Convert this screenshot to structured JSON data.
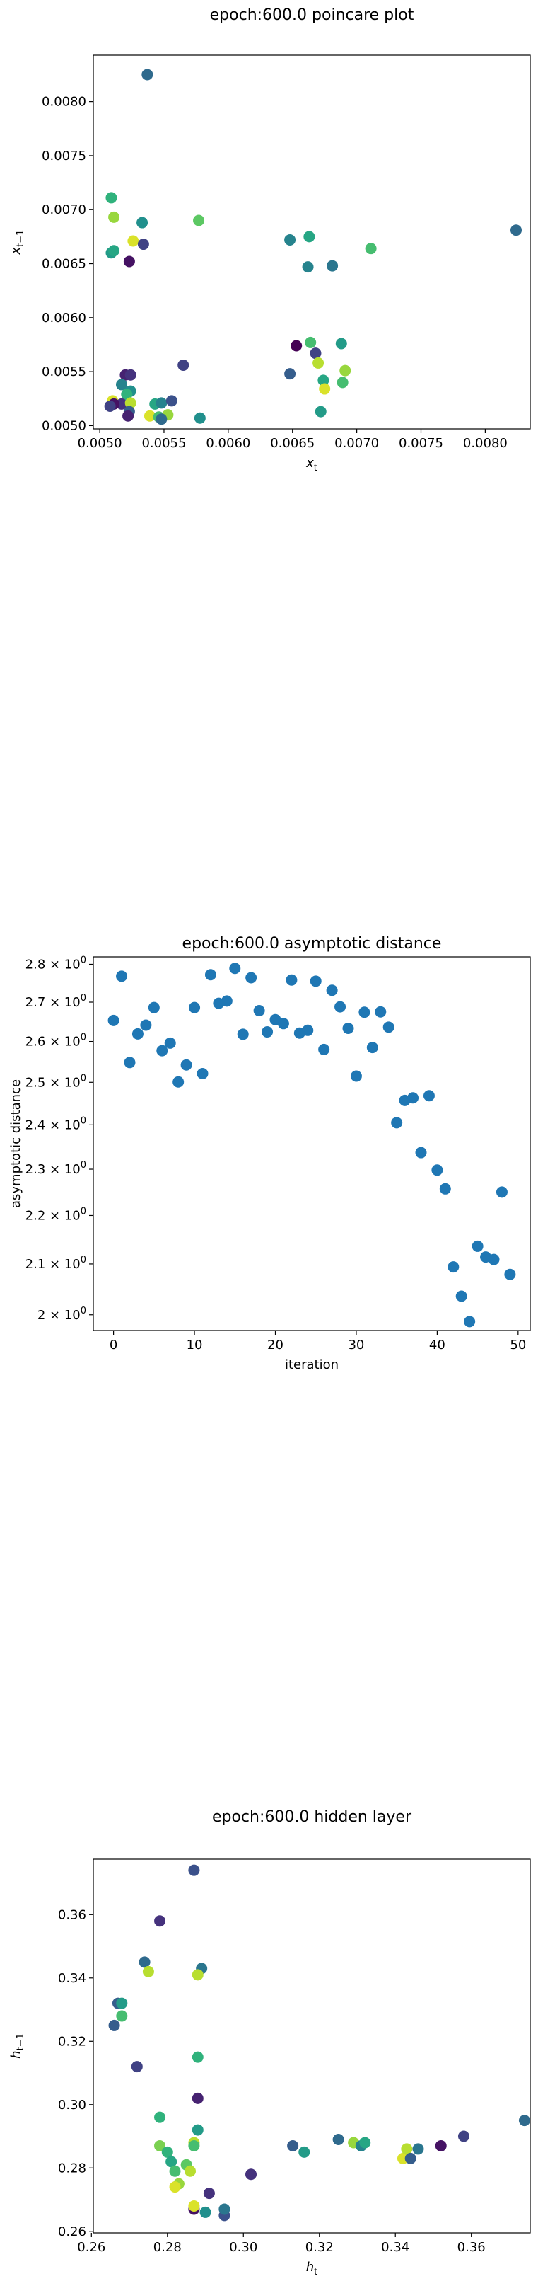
{
  "chart_data": [
    {
      "type": "scatter",
      "title": "epoch:600.0 poincare plot",
      "xlabel": "x_t",
      "ylabel": "x_{t-1}",
      "xlim": [
        0.00495,
        0.00835
      ],
      "ylim": [
        0.00497,
        0.00843
      ],
      "xticks": [
        "0.0050",
        "0.0055",
        "0.0060",
        "0.0065",
        "0.0070",
        "0.0075",
        "0.0080"
      ],
      "xtick_values": [
        0.005,
        0.0055,
        0.006,
        0.0065,
        0.007,
        0.0075,
        0.008
      ],
      "yticks": [
        "0.0050",
        "0.0055",
        "0.0060",
        "0.0065",
        "0.0070",
        "0.0075",
        "0.0080"
      ],
      "ytick_values": [
        0.005,
        0.0055,
        0.006,
        0.0065,
        0.007,
        0.0075,
        0.008
      ],
      "colormap": "viridis",
      "points": [
        {
          "x": 0.00537,
          "y": 0.00825,
          "c": 0.35
        },
        {
          "x": 0.00509,
          "y": 0.00711,
          "c": 0.65
        },
        {
          "x": 0.00511,
          "y": 0.00693,
          "c": 0.85
        },
        {
          "x": 0.00533,
          "y": 0.00688,
          "c": 0.5
        },
        {
          "x": 0.00577,
          "y": 0.0069,
          "c": 0.75
        },
        {
          "x": 0.00509,
          "y": 0.0066,
          "c": 0.55
        },
        {
          "x": 0.00526,
          "y": 0.00671,
          "c": 0.95
        },
        {
          "x": 0.00534,
          "y": 0.00668,
          "c": 0.2
        },
        {
          "x": 0.00523,
          "y": 0.00652,
          "c": 0.05
        },
        {
          "x": 0.00511,
          "y": 0.00662,
          "c": 0.6
        },
        {
          "x": 0.00648,
          "y": 0.00672,
          "c": 0.45
        },
        {
          "x": 0.00663,
          "y": 0.00675,
          "c": 0.6
        },
        {
          "x": 0.00711,
          "y": 0.00664,
          "c": 0.7
        },
        {
          "x": 0.00824,
          "y": 0.00681,
          "c": 0.35
        },
        {
          "x": 0.00662,
          "y": 0.00647,
          "c": 0.45
        },
        {
          "x": 0.00681,
          "y": 0.00648,
          "c": 0.4
        },
        {
          "x": 0.0052,
          "y": 0.00547,
          "c": 0.1
        },
        {
          "x": 0.00524,
          "y": 0.00547,
          "c": 0.15
        },
        {
          "x": 0.00565,
          "y": 0.00556,
          "c": 0.2
        },
        {
          "x": 0.00517,
          "y": 0.00538,
          "c": 0.45
        },
        {
          "x": 0.00524,
          "y": 0.00532,
          "c": 0.5
        },
        {
          "x": 0.00521,
          "y": 0.00529,
          "c": 0.65
        },
        {
          "x": 0.0051,
          "y": 0.00523,
          "c": 0.95
        },
        {
          "x": 0.00517,
          "y": 0.0052,
          "c": 0.15
        },
        {
          "x": 0.00511,
          "y": 0.0052,
          "c": 0.05
        },
        {
          "x": 0.00524,
          "y": 0.00521,
          "c": 0.9
        },
        {
          "x": 0.00508,
          "y": 0.00518,
          "c": 0.2
        },
        {
          "x": 0.00523,
          "y": 0.00513,
          "c": 0.3
        },
        {
          "x": 0.00522,
          "y": 0.00509,
          "c": 0.1
        },
        {
          "x": 0.00543,
          "y": 0.0052,
          "c": 0.6
        },
        {
          "x": 0.00548,
          "y": 0.00521,
          "c": 0.45
        },
        {
          "x": 0.00556,
          "y": 0.00523,
          "c": 0.25
        },
        {
          "x": 0.00539,
          "y": 0.00509,
          "c": 0.95
        },
        {
          "x": 0.00546,
          "y": 0.00508,
          "c": 0.7
        },
        {
          "x": 0.00553,
          "y": 0.0051,
          "c": 0.85
        },
        {
          "x": 0.00548,
          "y": 0.00506,
          "c": 0.35
        },
        {
          "x": 0.00578,
          "y": 0.00507,
          "c": 0.5
        },
        {
          "x": 0.00653,
          "y": 0.00574,
          "c": 0.0
        },
        {
          "x": 0.00664,
          "y": 0.00577,
          "c": 0.7
        },
        {
          "x": 0.00668,
          "y": 0.00567,
          "c": 0.2
        },
        {
          "x": 0.00688,
          "y": 0.00576,
          "c": 0.55
        },
        {
          "x": 0.0067,
          "y": 0.00558,
          "c": 0.9
        },
        {
          "x": 0.00648,
          "y": 0.00548,
          "c": 0.3
        },
        {
          "x": 0.00674,
          "y": 0.00542,
          "c": 0.6
        },
        {
          "x": 0.00691,
          "y": 0.00551,
          "c": 0.85
        },
        {
          "x": 0.00689,
          "y": 0.0054,
          "c": 0.7
        },
        {
          "x": 0.00675,
          "y": 0.00534,
          "c": 0.95
        },
        {
          "x": 0.00672,
          "y": 0.00513,
          "c": 0.55
        }
      ]
    },
    {
      "type": "scatter",
      "title": "epoch:600.0 asymptotic distance",
      "xlabel": "iteration",
      "ylabel": "asymptotic distance",
      "yscale": "log",
      "color": "#1f77b4",
      "xlim": [
        -2.5,
        51.5
      ],
      "ylim": [
        1.97,
        2.82
      ],
      "xticks": [
        "0",
        "10",
        "20",
        "30",
        "40",
        "50"
      ],
      "xtick_values": [
        0,
        10,
        20,
        30,
        40,
        50
      ],
      "yticks": [
        "2 × 10^0",
        "2.1 × 10^0",
        "2.2 × 10^0",
        "2.3 × 10^0",
        "2.4 × 10^0",
        "2.5 × 10^0",
        "2.6 × 10^0",
        "2.7 × 10^0",
        "2.8 × 10^0"
      ],
      "ytick_values": [
        2.0,
        2.1,
        2.2,
        2.3,
        2.4,
        2.5,
        2.6,
        2.7,
        2.8
      ],
      "x": [
        0,
        1,
        2,
        3,
        4,
        5,
        6,
        7,
        8,
        9,
        10,
        11,
        12,
        13,
        14,
        15,
        16,
        17,
        18,
        19,
        20,
        21,
        22,
        23,
        24,
        25,
        26,
        27,
        28,
        29,
        30,
        31,
        32,
        33,
        34,
        35,
        36,
        37,
        38,
        39,
        40,
        41,
        42,
        43,
        44,
        45,
        46,
        47,
        48,
        49
      ],
      "y": [
        2.653,
        2.768,
        2.548,
        2.619,
        2.641,
        2.686,
        2.577,
        2.596,
        2.501,
        2.542,
        2.686,
        2.521,
        2.772,
        2.697,
        2.703,
        2.789,
        2.618,
        2.764,
        2.678,
        2.624,
        2.655,
        2.645,
        2.758,
        2.621,
        2.628,
        2.755,
        2.58,
        2.731,
        2.688,
        2.633,
        2.515,
        2.674,
        2.585,
        2.675,
        2.636,
        2.405,
        2.457,
        2.463,
        2.337,
        2.468,
        2.298,
        2.257,
        2.094,
        2.036,
        1.987,
        2.136,
        2.114,
        2.109,
        2.25,
        2.079
      ]
    },
    {
      "type": "scatter",
      "title": "epoch:600.0 hidden layer",
      "xlabel": "h_t",
      "ylabel": "h_{t-1}",
      "xlim": [
        0.2605,
        0.3755
      ],
      "ylim": [
        0.2595,
        0.3775
      ],
      "xticks": [
        "0.26",
        "0.28",
        "0.30",
        "0.32",
        "0.34",
        "0.36"
      ],
      "xtick_values": [
        0.26,
        0.28,
        0.3,
        0.32,
        0.34,
        0.36
      ],
      "yticks": [
        "0.26",
        "0.28",
        "0.30",
        "0.32",
        "0.34",
        "0.36"
      ],
      "ytick_values": [
        0.26,
        0.28,
        0.3,
        0.32,
        0.34,
        0.36
      ],
      "colormap": "viridis",
      "points": [
        {
          "x": 0.287,
          "y": 0.374,
          "c": 0.25
        },
        {
          "x": 0.278,
          "y": 0.358,
          "c": 0.15
        },
        {
          "x": 0.274,
          "y": 0.345,
          "c": 0.35
        },
        {
          "x": 0.289,
          "y": 0.343,
          "c": 0.4
        },
        {
          "x": 0.275,
          "y": 0.342,
          "c": 0.9
        },
        {
          "x": 0.288,
          "y": 0.341,
          "c": 0.9
        },
        {
          "x": 0.267,
          "y": 0.332,
          "c": 0.3
        },
        {
          "x": 0.268,
          "y": 0.332,
          "c": 0.55
        },
        {
          "x": 0.268,
          "y": 0.328,
          "c": 0.7
        },
        {
          "x": 0.266,
          "y": 0.325,
          "c": 0.3
        },
        {
          "x": 0.272,
          "y": 0.312,
          "c": 0.2
        },
        {
          "x": 0.288,
          "y": 0.315,
          "c": 0.65
        },
        {
          "x": 0.288,
          "y": 0.302,
          "c": 0.1
        },
        {
          "x": 0.278,
          "y": 0.296,
          "c": 0.65
        },
        {
          "x": 0.278,
          "y": 0.287,
          "c": 0.8
        },
        {
          "x": 0.287,
          "y": 0.288,
          "c": 0.9
        },
        {
          "x": 0.288,
          "y": 0.292,
          "c": 0.55
        },
        {
          "x": 0.28,
          "y": 0.285,
          "c": 0.65
        },
        {
          "x": 0.281,
          "y": 0.282,
          "c": 0.6
        },
        {
          "x": 0.282,
          "y": 0.279,
          "c": 0.7
        },
        {
          "x": 0.285,
          "y": 0.281,
          "c": 0.75
        },
        {
          "x": 0.286,
          "y": 0.279,
          "c": 0.9
        },
        {
          "x": 0.287,
          "y": 0.287,
          "c": 0.7
        },
        {
          "x": 0.283,
          "y": 0.275,
          "c": 0.85
        },
        {
          "x": 0.282,
          "y": 0.274,
          "c": 0.95
        },
        {
          "x": 0.287,
          "y": 0.267,
          "c": 0.05
        },
        {
          "x": 0.287,
          "y": 0.268,
          "c": 0.95
        },
        {
          "x": 0.291,
          "y": 0.272,
          "c": 0.15
        },
        {
          "x": 0.29,
          "y": 0.266,
          "c": 0.5
        },
        {
          "x": 0.295,
          "y": 0.265,
          "c": 0.25
        },
        {
          "x": 0.295,
          "y": 0.267,
          "c": 0.4
        },
        {
          "x": 0.302,
          "y": 0.278,
          "c": 0.15
        },
        {
          "x": 0.313,
          "y": 0.287,
          "c": 0.3
        },
        {
          "x": 0.316,
          "y": 0.285,
          "c": 0.55
        },
        {
          "x": 0.325,
          "y": 0.289,
          "c": 0.35
        },
        {
          "x": 0.329,
          "y": 0.288,
          "c": 0.85
        },
        {
          "x": 0.331,
          "y": 0.287,
          "c": 0.45
        },
        {
          "x": 0.332,
          "y": 0.288,
          "c": 0.6
        },
        {
          "x": 0.342,
          "y": 0.283,
          "c": 0.95
        },
        {
          "x": 0.343,
          "y": 0.286,
          "c": 0.9
        },
        {
          "x": 0.344,
          "y": 0.283,
          "c": 0.3
        },
        {
          "x": 0.346,
          "y": 0.286,
          "c": 0.4
        },
        {
          "x": 0.352,
          "y": 0.287,
          "c": 0.05
        },
        {
          "x": 0.358,
          "y": 0.29,
          "c": 0.2
        },
        {
          "x": 0.374,
          "y": 0.295,
          "c": 0.35
        }
      ]
    }
  ]
}
